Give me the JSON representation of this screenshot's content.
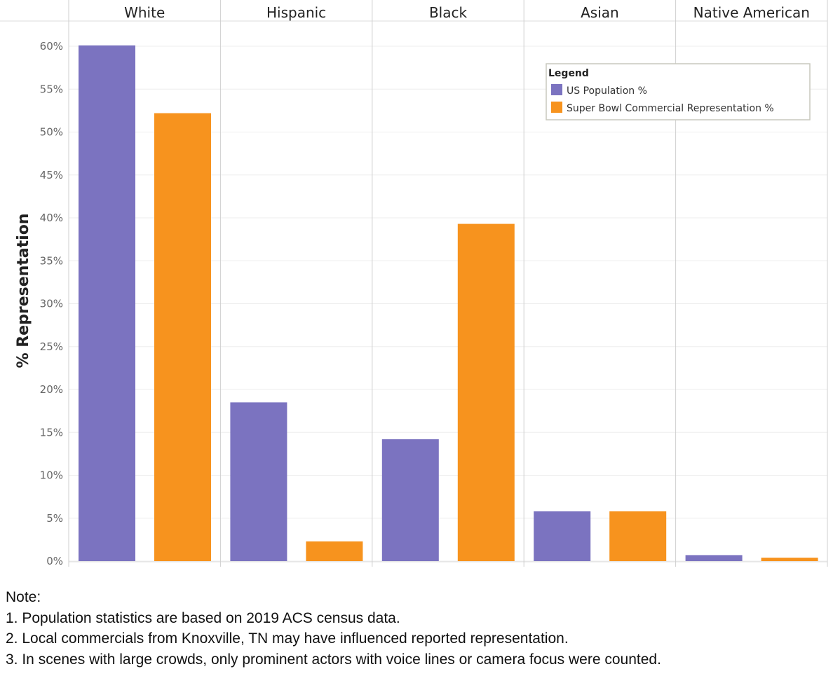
{
  "chart_data": {
    "type": "bar",
    "categories": [
      "White",
      "Hispanic",
      "Black",
      "Asian",
      "Native American"
    ],
    "series": [
      {
        "name": "US Population %",
        "color": "#7b73c0",
        "values": [
          60.1,
          18.5,
          14.2,
          5.8,
          0.7
        ]
      },
      {
        "name": "Super Bowl Commercial Representation %",
        "color": "#f7931e",
        "values": [
          52.2,
          2.3,
          39.3,
          5.8,
          0.4
        ]
      }
    ],
    "ylabel": "% Representation",
    "ylim": [
      0,
      60
    ],
    "yticks": [
      "0%",
      "5%",
      "10%",
      "15%",
      "20%",
      "25%",
      "30%",
      "35%",
      "40%",
      "45%",
      "50%",
      "55%",
      "60%"
    ],
    "legend": {
      "title": "Legend",
      "placement": "top-right"
    },
    "grid": true
  },
  "notes": {
    "heading": "Note:",
    "items": [
      "1. Population statistics are based on 2019 ACS census data.",
      "2. Local commercials from Knoxville, TN may have influenced reported representation.",
      "3. In scenes with large crowds, only prominent actors with voice lines or camera focus were counted."
    ]
  }
}
